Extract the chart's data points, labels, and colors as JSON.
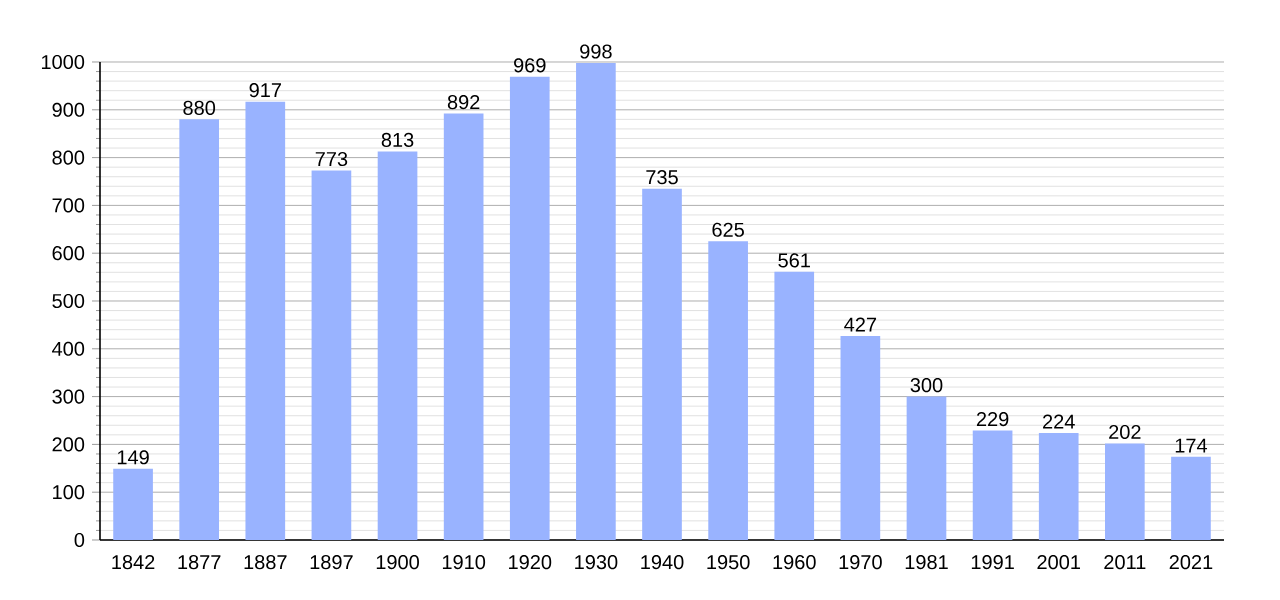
{
  "chart_data": {
    "type": "bar",
    "categories": [
      "1842",
      "1877",
      "1887",
      "1897",
      "1900",
      "1910",
      "1920",
      "1930",
      "1940",
      "1950",
      "1960",
      "1970",
      "1981",
      "1991",
      "2001",
      "2011",
      "2021"
    ],
    "values": [
      149,
      880,
      917,
      773,
      813,
      892,
      969,
      998,
      735,
      625,
      561,
      427,
      300,
      229,
      224,
      202,
      174
    ],
    "color": "#99b3ff",
    "ylim": [
      0,
      1000
    ],
    "yticks": [
      0,
      100,
      200,
      300,
      400,
      500,
      600,
      700,
      800,
      900,
      1000
    ],
    "grid": "y",
    "data_labels": true
  }
}
